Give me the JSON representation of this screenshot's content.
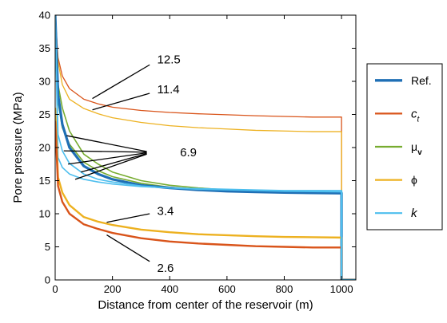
{
  "chart_data": {
    "type": "line",
    "xlabel": "Distance from center of the reservoir (m)",
    "ylabel": "Pore pressure (MPa)",
    "xlim": [
      0,
      1050
    ],
    "ylim": [
      0,
      40
    ],
    "xticks": [
      0,
      200,
      400,
      600,
      800,
      1000
    ],
    "yticks": [
      0,
      5,
      10,
      15,
      20,
      25,
      30,
      35,
      40
    ],
    "grid": false,
    "legend": {
      "placement": "right outside",
      "entries": [
        {
          "series": "Ref.",
          "label": "Ref.",
          "color": "#1f6fb5",
          "style": "plain"
        },
        {
          "series": "ct",
          "label": "c",
          "sub": "t",
          "color": "#d9541a",
          "style": "italic"
        },
        {
          "series": "mu_v",
          "label": "μ",
          "sub": "v",
          "color": "#77ac30",
          "style": "plain"
        },
        {
          "series": "phi",
          "label": "ϕ",
          "color": "#edb120",
          "style": "plain"
        },
        {
          "series": "k",
          "label": "k",
          "color": "#4dbeee",
          "style": "italic"
        }
      ]
    },
    "series": [
      {
        "id": "ct-high",
        "color": "#d9541a",
        "width": 1.3,
        "x": [
          0,
          10,
          25,
          50,
          100,
          150,
          200,
          300,
          400,
          500,
          600,
          700,
          800,
          900,
          1000,
          1000,
          1050
        ],
        "y": [
          40,
          33.6,
          30.8,
          28.9,
          27.3,
          26.6,
          26.1,
          25.6,
          25.3,
          25.1,
          24.95,
          24.8,
          24.7,
          24.6,
          24.6,
          0,
          0
        ]
      },
      {
        "id": "phi-high",
        "color": "#edb120",
        "width": 1.3,
        "x": [
          0,
          10,
          25,
          50,
          100,
          150,
          200,
          300,
          400,
          500,
          600,
          700,
          800,
          900,
          1000,
          1000,
          1050
        ],
        "y": [
          40,
          33.0,
          29.5,
          27.3,
          25.9,
          25.1,
          24.5,
          23.8,
          23.3,
          23.0,
          22.8,
          22.6,
          22.5,
          22.4,
          22.4,
          0,
          0
        ]
      },
      {
        "id": "mu-a",
        "color": "#77ac30",
        "width": 1.6,
        "x": [
          0,
          10,
          25,
          50,
          100,
          150,
          200,
          300,
          400,
          500,
          600,
          700,
          800,
          900,
          1000,
          1000,
          1050
        ],
        "y": [
          40,
          29.5,
          26.0,
          22.5,
          19.0,
          17.5,
          16.3,
          15.0,
          14.3,
          13.9,
          13.6,
          13.4,
          13.3,
          13.2,
          13.2,
          0,
          0
        ]
      },
      {
        "id": "mu-b",
        "color": "#77ac30",
        "width": 1.6,
        "x": [
          0,
          10,
          25,
          50,
          100,
          150,
          200,
          300,
          400,
          500,
          600,
          700,
          800,
          900,
          1000,
          1000,
          1050
        ],
        "y": [
          40,
          27.0,
          23.0,
          20.5,
          17.8,
          16.5,
          15.6,
          14.6,
          14.0,
          13.7,
          13.5,
          13.3,
          13.2,
          13.1,
          13.1,
          0,
          0
        ]
      },
      {
        "id": "ref",
        "color": "#1f6fb5",
        "width": 3.2,
        "x": [
          0,
          10,
          25,
          50,
          100,
          150,
          200,
          300,
          400,
          500,
          600,
          700,
          800,
          900,
          1000,
          1000,
          1050
        ],
        "y": [
          40,
          28.0,
          23.5,
          20.0,
          17.2,
          16.0,
          15.2,
          14.3,
          13.9,
          13.6,
          13.4,
          13.3,
          13.2,
          13.15,
          13.1,
          0,
          0
        ]
      },
      {
        "id": "k-a",
        "color": "#4dbeee",
        "width": 1.6,
        "x": [
          0,
          10,
          25,
          50,
          100,
          150,
          200,
          300,
          400,
          500,
          600,
          700,
          800,
          900,
          1000,
          1000,
          1050
        ],
        "y": [
          40,
          22.0,
          19.5,
          17.6,
          16.0,
          15.2,
          14.8,
          14.2,
          13.9,
          13.7,
          13.6,
          13.5,
          13.4,
          13.35,
          13.3,
          0,
          0
        ]
      },
      {
        "id": "k-b",
        "color": "#4dbeee",
        "width": 1.6,
        "x": [
          0,
          10,
          25,
          50,
          100,
          150,
          200,
          300,
          400,
          500,
          600,
          700,
          800,
          900,
          1000,
          1000,
          1050
        ],
        "y": [
          40,
          18.5,
          17.0,
          16.0,
          15.2,
          14.8,
          14.5,
          14.1,
          13.9,
          13.8,
          13.7,
          13.6,
          13.5,
          13.5,
          13.5,
          0,
          0
        ]
      },
      {
        "id": "phi-low",
        "color": "#edb120",
        "width": 2.4,
        "x": [
          0,
          10,
          25,
          50,
          100,
          150,
          200,
          300,
          400,
          500,
          600,
          700,
          800,
          900,
          1000,
          1000,
          1050
        ],
        "y": [
          26.0,
          15.5,
          13.2,
          11.3,
          9.5,
          8.8,
          8.3,
          7.6,
          7.2,
          6.9,
          6.75,
          6.6,
          6.5,
          6.45,
          6.4,
          0,
          0
        ]
      },
      {
        "id": "ct-low",
        "color": "#d9541a",
        "width": 2.4,
        "x": [
          0,
          10,
          25,
          50,
          100,
          150,
          200,
          300,
          400,
          500,
          600,
          700,
          800,
          900,
          1000,
          1000,
          1050
        ],
        "y": [
          24.0,
          14.2,
          11.8,
          10.0,
          8.4,
          7.7,
          7.1,
          6.3,
          5.8,
          5.5,
          5.3,
          5.1,
          5.0,
          4.9,
          4.9,
          0,
          0
        ]
      },
      {
        "id": "k-c",
        "color": "#4dbeee",
        "width": 2.2,
        "x": [
          1000,
          1000,
          1050
        ],
        "y": [
          13.5,
          0,
          0
        ]
      }
    ],
    "annotations": [
      {
        "text": "12.5",
        "x": 250,
        "y": 33.3,
        "lines": [
          [
            [
              130,
              27.4
            ],
            [
              330,
              32.5
            ]
          ]
        ]
      },
      {
        "text": "11.4",
        "x": 250,
        "y": 28.8,
        "lines": [
          [
            [
              130,
              25.7
            ],
            [
              330,
              28.2
            ]
          ]
        ]
      },
      {
        "text": "6.9",
        "x": 330,
        "y": 19.3,
        "lines": [
          [
            [
              40,
              21.8
            ],
            [
              320,
              19.4
            ]
          ],
          [
            [
              30,
              19.5
            ],
            [
              320,
              19.3
            ]
          ],
          [
            [
              45,
              17.5
            ],
            [
              320,
              19.2
            ]
          ],
          [
            [
              90,
              16.3
            ],
            [
              320,
              19.1
            ]
          ],
          [
            [
              70,
              15.2
            ],
            [
              320,
              19.0
            ]
          ]
        ]
      },
      {
        "text": "3.4",
        "x": 250,
        "y": 10.4,
        "lines": [
          [
            [
              180,
              8.7
            ],
            [
              330,
              10.0
            ]
          ]
        ]
      },
      {
        "text": "2.6",
        "x": 250,
        "y": 1.8,
        "lines": [
          [
            [
              180,
              6.8
            ],
            [
              330,
              2.8
            ]
          ]
        ]
      }
    ]
  }
}
